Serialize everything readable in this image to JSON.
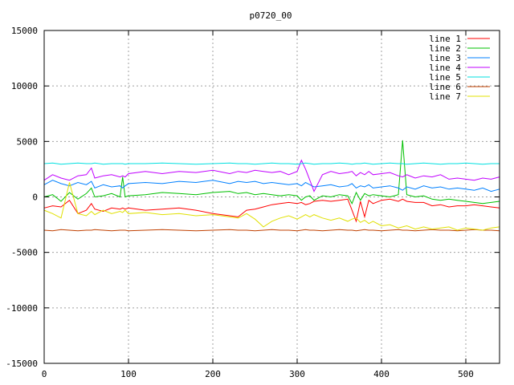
{
  "chart_data": {
    "type": "line",
    "title": "p0720_00",
    "xlabel": "",
    "ylabel": "",
    "xlim": [
      0,
      540
    ],
    "ylim": [
      -15000,
      15000
    ],
    "x_ticks": [
      "0",
      "100",
      "200",
      "300",
      "400",
      "500"
    ],
    "y_ticks": [
      "-15000",
      "-10000",
      "-5000",
      "0",
      "5000",
      "10000",
      "15000"
    ],
    "x_tick_values": [
      0,
      100,
      200,
      300,
      400,
      500
    ],
    "y_tick_values": [
      -15000,
      -10000,
      -5000,
      0,
      5000,
      10000,
      15000
    ],
    "grid": true,
    "legend_position": "top-right",
    "x": [
      0,
      10,
      20,
      30,
      40,
      50,
      56,
      60,
      70,
      80,
      90,
      93,
      96,
      100,
      120,
      140,
      160,
      180,
      200,
      220,
      230,
      240,
      250,
      260,
      270,
      280,
      290,
      300,
      305,
      310,
      315,
      320,
      330,
      340,
      350,
      360,
      365,
      370,
      375,
      380,
      385,
      390,
      400,
      410,
      420,
      425,
      430,
      440,
      450,
      460,
      470,
      480,
      490,
      500,
      510,
      520,
      530,
      540
    ],
    "series": [
      {
        "name": "line 1",
        "color": "#ff0000",
        "values": [
          -1000,
          -800,
          -900,
          -300,
          -1500,
          -1200,
          -600,
          -1100,
          -1300,
          -1000,
          -1100,
          -1000,
          -1100,
          -1000,
          -1200,
          -1100,
          -1000,
          -1200,
          -1500,
          -1700,
          -1800,
          -1200,
          -1100,
          -900,
          -700,
          -600,
          -500,
          -600,
          -500,
          -700,
          -600,
          -400,
          -300,
          -400,
          -300,
          -200,
          -1200,
          -2200,
          -400,
          -1800,
          -300,
          -600,
          -300,
          -200,
          -400,
          -200,
          -400,
          -500,
          -500,
          -800,
          -700,
          -900,
          -800,
          -800,
          -700,
          -800,
          -900,
          -1000
        ]
      },
      {
        "name": "line 2",
        "color": "#00c000",
        "values": [
          0,
          200,
          -400,
          400,
          -200,
          300,
          800,
          0,
          100,
          300,
          0,
          1800,
          0,
          100,
          200,
          400,
          300,
          200,
          400,
          500,
          300,
          400,
          200,
          300,
          200,
          100,
          200,
          100,
          -300,
          0,
          100,
          -300,
          100,
          0,
          200,
          100,
          -600,
          400,
          -300,
          300,
          100,
          200,
          100,
          0,
          200,
          5100,
          200,
          0,
          100,
          -200,
          -300,
          -200,
          -300,
          -400,
          -500,
          -600,
          -500,
          -400
        ]
      },
      {
        "name": "line 3",
        "color": "#0080ff",
        "values": [
          1100,
          1500,
          1200,
          1000,
          1300,
          1100,
          1400,
          800,
          1100,
          900,
          1000,
          800,
          1000,
          1200,
          1300,
          1200,
          1400,
          1300,
          1500,
          1200,
          1400,
          1300,
          1400,
          1200,
          1300,
          1200,
          1100,
          1200,
          1000,
          1300,
          1100,
          900,
          1000,
          1100,
          900,
          1000,
          1200,
          800,
          1000,
          900,
          1100,
          800,
          900,
          1000,
          800,
          600,
          900,
          700,
          1000,
          800,
          900,
          700,
          800,
          700,
          600,
          800,
          500,
          700
        ]
      },
      {
        "name": "line 4",
        "color": "#c000ff",
        "values": [
          1500,
          2000,
          1700,
          1500,
          1900,
          2000,
          2600,
          1700,
          1900,
          2000,
          1800,
          1900,
          1800,
          2100,
          2300,
          2100,
          2300,
          2200,
          2400,
          2100,
          2300,
          2200,
          2400,
          2300,
          2200,
          2300,
          2000,
          2300,
          3300,
          2500,
          1500,
          500,
          2000,
          2300,
          2100,
          2200,
          2300,
          1900,
          2200,
          2000,
          2300,
          2000,
          2100,
          2200,
          1900,
          1800,
          2000,
          1700,
          1900,
          1800,
          2000,
          1600,
          1700,
          1600,
          1500,
          1700,
          1600,
          1800
        ]
      },
      {
        "name": "line 5",
        "color": "#00e0e0",
        "values": [
          3000,
          3050,
          2950,
          3000,
          3050,
          3000,
          3000,
          3050,
          2950,
          3000,
          3000,
          3000,
          2950,
          3000,
          3000,
          3050,
          3000,
          2950,
          3000,
          3050,
          3000,
          3000,
          2950,
          3000,
          3050,
          3000,
          3000,
          2950,
          3000,
          3050,
          3000,
          2950,
          3000,
          3000,
          3050,
          3000,
          2950,
          3000,
          3000,
          3050,
          3000,
          2950,
          3000,
          3050,
          3000,
          3000,
          2950,
          3000,
          3050,
          3000,
          2950,
          3000,
          3000,
          3050,
          3000,
          2950,
          3000,
          3000
        ]
      },
      {
        "name": "line 6",
        "color": "#c04000",
        "values": [
          -3000,
          -3050,
          -2950,
          -3000,
          -3050,
          -3000,
          -3000,
          -2950,
          -3000,
          -3050,
          -3000,
          -3000,
          -3000,
          -3050,
          -3000,
          -2950,
          -3000,
          -3050,
          -3000,
          -2950,
          -3000,
          -3000,
          -3050,
          -3000,
          -2950,
          -3000,
          -3000,
          -3050,
          -3000,
          -2950,
          -3000,
          -3000,
          -3050,
          -3000,
          -2950,
          -3000,
          -3000,
          -3050,
          -3000,
          -2950,
          -3000,
          -3000,
          -3050,
          -3000,
          -2950,
          -3000,
          -3000,
          -3050,
          -3000,
          -2950,
          -3000,
          -3000,
          -3050,
          -3000,
          -2950,
          -3000,
          -3000,
          -3050
        ]
      },
      {
        "name": "line 7",
        "color": "#e0e000",
        "values": [
          -1200,
          -1500,
          -1900,
          1300,
          -1500,
          -1700,
          -1300,
          -1600,
          -1200,
          -1500,
          -1300,
          -1400,
          -1200,
          -1500,
          -1400,
          -1600,
          -1500,
          -1700,
          -1600,
          -1800,
          -1900,
          -1500,
          -2000,
          -2700,
          -2200,
          -1900,
          -1700,
          -2000,
          -1800,
          -1600,
          -1800,
          -1600,
          -1900,
          -2100,
          -1900,
          -2200,
          -2000,
          -1900,
          -2300,
          -2100,
          -2400,
          -2200,
          -2600,
          -2500,
          -2800,
          -2700,
          -2600,
          -2900,
          -2700,
          -2900,
          -2800,
          -2700,
          -3000,
          -2800,
          -2900,
          -3000,
          -2800,
          -2700
        ]
      }
    ]
  }
}
